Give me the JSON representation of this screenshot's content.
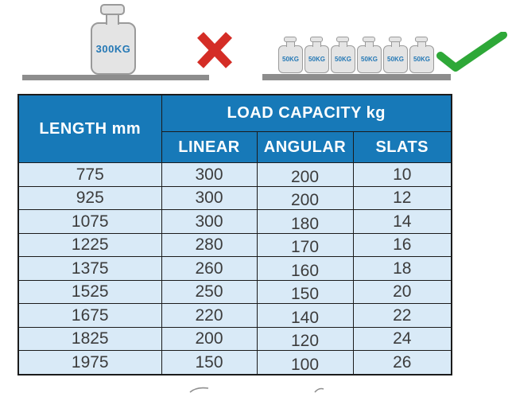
{
  "illustration": {
    "wrong": {
      "weight_label": "300KG",
      "icon": "x-mark"
    },
    "right": {
      "weight_label": "50KG",
      "count": 6,
      "icon": "check-mark"
    },
    "colors": {
      "weight_fill": "#e4e4e4",
      "weight_border": "#9a9a9a",
      "label_blue": "#2478b5",
      "platform_gray": "#8d8d8d",
      "x_red": "#d42d26",
      "check_green": "#2ea838"
    }
  },
  "table": {
    "headers": {
      "length": "LENGTH mm",
      "load_capacity": "LOAD CAPACITY kg",
      "linear": "LINEAR",
      "angular": "ANGULAR",
      "slats": "SLATS"
    },
    "colors": {
      "header_bg": "#1779b8",
      "row_bg": "#d9eaf7",
      "border": "#1b1b1b",
      "header_text": "#ffffff",
      "body_text": "#3c3c3c"
    },
    "rows": [
      {
        "length": "775",
        "linear": "300",
        "angular": "200",
        "slats": "10"
      },
      {
        "length": "925",
        "linear": "300",
        "angular": "200",
        "slats": "12"
      },
      {
        "length": "1075",
        "linear": "300",
        "angular": "180",
        "slats": "14"
      },
      {
        "length": "1225",
        "linear": "280",
        "angular": "170",
        "slats": "16"
      },
      {
        "length": "1375",
        "linear": "260",
        "angular": "160",
        "slats": "18"
      },
      {
        "length": "1525",
        "linear": "250",
        "angular": "150",
        "slats": "20"
      },
      {
        "length": "1675",
        "linear": "220",
        "angular": "140",
        "slats": "22"
      },
      {
        "length": "1825",
        "linear": "200",
        "angular": "120",
        "slats": "24"
      },
      {
        "length": "1975",
        "linear": "150",
        "angular": "100",
        "slats": "26"
      }
    ]
  }
}
